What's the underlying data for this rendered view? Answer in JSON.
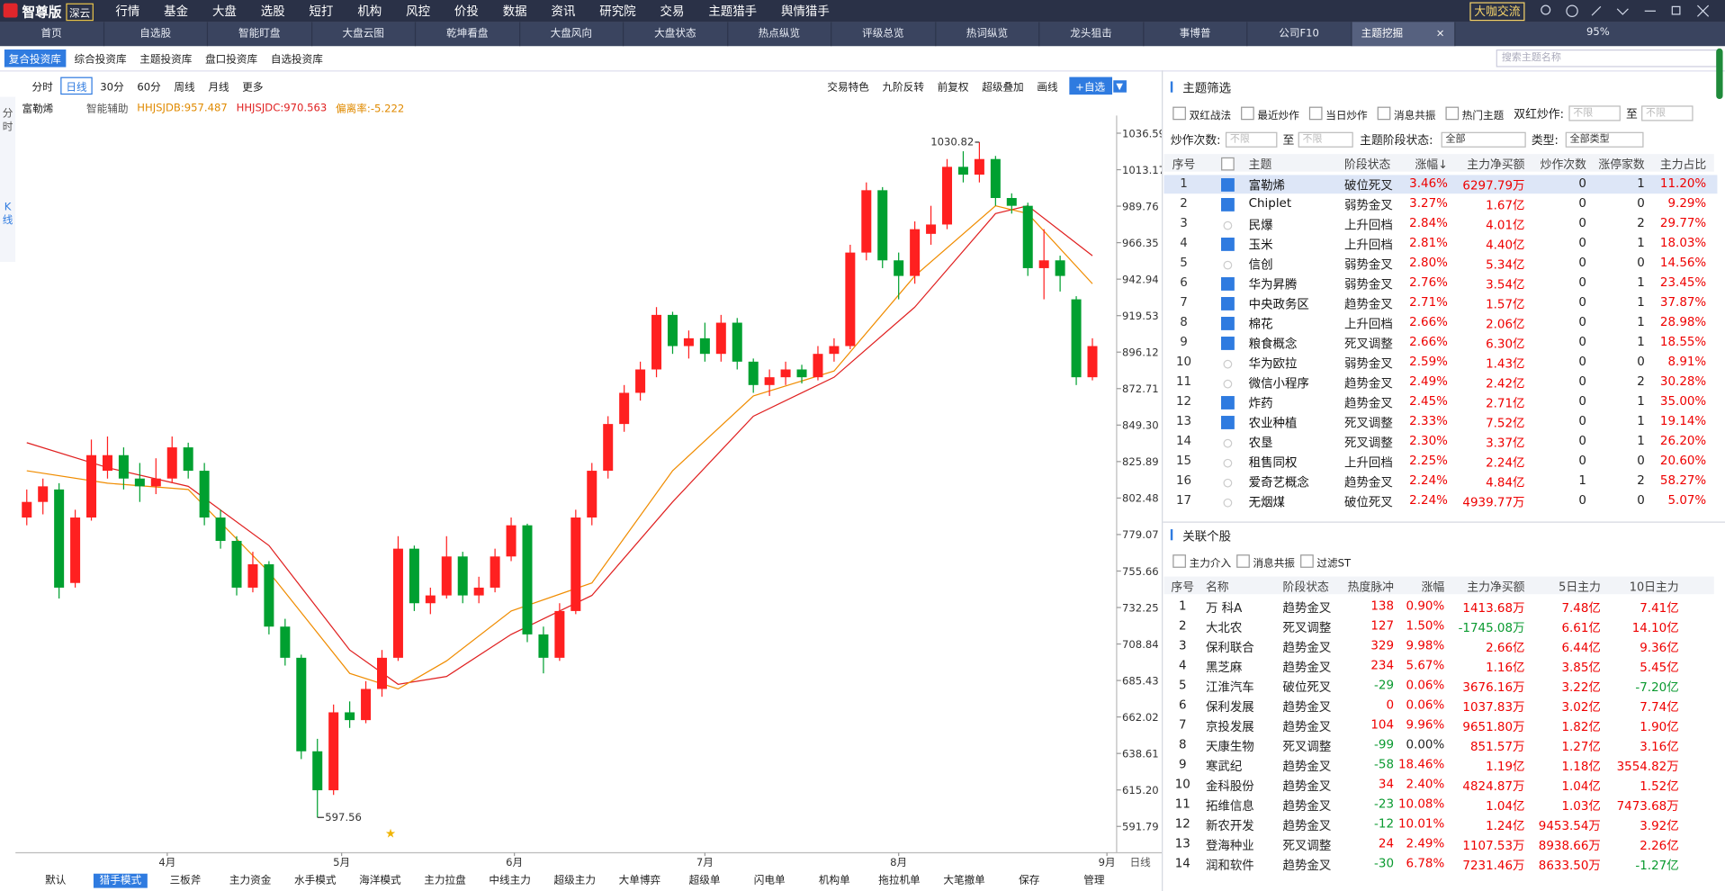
{
  "top_bar": {
    "product": "智尊版",
    "badge": "深云",
    "menu": [
      "行情",
      "基金",
      "大盘",
      "选股",
      "短打",
      "机构",
      "风控",
      "价投",
      "数据",
      "资讯",
      "研究院",
      "交易",
      "主题猎手",
      "舆情猎手"
    ],
    "button": "大咖交流"
  },
  "tabs": {
    "items": [
      "首页",
      "自选股",
      "智能盯盘",
      "大盘云图",
      "乾坤看盘",
      "大盘风向",
      "大盘状态",
      "热点纵览",
      "评级总览",
      "热词纵览",
      "龙头狙击",
      "事博普",
      "公司F10",
      "主题挖掘"
    ],
    "active": 13,
    "zoom": "95%"
  },
  "library_tabs": {
    "items": [
      "复合投资库",
      "综合投资库",
      "主题投资库",
      "盘口投资库",
      "自选投资库"
    ],
    "active": 0,
    "search_placeholder": "搜索主题名称"
  },
  "side_tabs": [
    "分时",
    "K线"
  ],
  "chart_toolbar": {
    "periods": [
      "分时",
      "日线",
      "30分",
      "60分",
      "周线",
      "月线",
      "更多"
    ],
    "active": 1,
    "tools": [
      "交易特色",
      "九阶反转",
      "前复权",
      "超级叠加",
      "画线"
    ],
    "add_button": "+自选"
  },
  "chart_data": {
    "type": "candlestick",
    "stock": "富勒烯",
    "assist": "智能辅助",
    "indicators": [
      {
        "text": "HHJSJDB:957.487",
        "color": "#e08a00"
      },
      {
        "text": "HHJSJDC:970.563",
        "color": "#e02020"
      },
      {
        "text": "偏离率:-5.222",
        "color": "#e08a00"
      }
    ],
    "period_label": "日线",
    "up_color": "#ff2020",
    "down_color": "#00a030",
    "ohlc": [
      [
        790,
        808,
        785,
        800
      ],
      [
        800,
        815,
        792,
        810
      ],
      [
        808,
        812,
        738,
        745
      ],
      [
        748,
        795,
        745,
        790
      ],
      [
        790,
        840,
        788,
        830
      ],
      [
        820,
        842,
        815,
        830
      ],
      [
        830,
        835,
        808,
        815
      ],
      [
        815,
        825,
        800,
        810
      ],
      [
        810,
        828,
        805,
        815
      ],
      [
        815,
        842,
        812,
        835
      ],
      [
        835,
        838,
        815,
        820
      ],
      [
        820,
        825,
        785,
        790
      ],
      [
        790,
        795,
        770,
        775
      ],
      [
        775,
        778,
        740,
        745
      ],
      [
        745,
        768,
        742,
        760
      ],
      [
        760,
        762,
        715,
        720
      ],
      [
        720,
        725,
        695,
        700
      ],
      [
        700,
        702,
        635,
        640
      ],
      [
        640,
        648,
        597.56,
        615
      ],
      [
        615,
        670,
        612,
        665
      ],
      [
        665,
        672,
        655,
        660
      ],
      [
        660,
        685,
        658,
        680
      ],
      [
        680,
        705,
        675,
        700
      ],
      [
        700,
        778,
        698,
        770
      ],
      [
        770,
        772,
        730,
        735
      ],
      [
        735,
        745,
        728,
        740
      ],
      [
        740,
        778,
        738,
        765
      ],
      [
        765,
        768,
        735,
        740
      ],
      [
        740,
        752,
        735,
        745
      ],
      [
        745,
        770,
        742,
        765
      ],
      [
        765,
        790,
        762,
        785
      ],
      [
        785,
        786,
        710,
        715
      ],
      [
        715,
        720,
        690,
        700
      ],
      [
        700,
        735,
        698,
        730
      ],
      [
        730,
        795,
        728,
        790
      ],
      [
        790,
        825,
        785,
        820
      ],
      [
        820,
        855,
        815,
        850
      ],
      [
        850,
        875,
        845,
        870
      ],
      [
        870,
        890,
        865,
        885
      ],
      [
        885,
        925,
        880,
        920
      ],
      [
        920,
        922,
        895,
        900
      ],
      [
        900,
        910,
        892,
        905
      ],
      [
        905,
        915,
        890,
        895
      ],
      [
        895,
        920,
        890,
        915
      ],
      [
        915,
        918,
        885,
        890
      ],
      [
        890,
        892,
        870,
        875
      ],
      [
        875,
        885,
        868,
        880
      ],
      [
        880,
        890,
        875,
        885
      ],
      [
        885,
        888,
        876,
        880
      ],
      [
        880,
        900,
        878,
        895
      ],
      [
        895,
        905,
        890,
        900
      ],
      [
        900,
        965,
        898,
        960
      ],
      [
        960,
        1005,
        955,
        1000
      ],
      [
        1000,
        1002,
        950,
        955
      ],
      [
        955,
        960,
        930,
        945
      ],
      [
        945,
        980,
        940,
        975
      ],
      [
        972,
        990,
        965,
        978
      ],
      [
        978,
        1020,
        975,
        1015
      ],
      [
        1015,
        1025,
        1005,
        1010
      ],
      [
        1010,
        1030.82,
        1005,
        1020
      ],
      [
        1020,
        1022,
        990,
        995
      ],
      [
        995,
        998,
        985,
        990
      ],
      [
        990,
        992,
        945,
        950
      ],
      [
        950,
        975,
        930,
        955
      ],
      [
        955,
        958,
        935,
        945
      ],
      [
        930,
        932,
        875,
        880
      ],
      [
        880,
        905,
        878,
        900
      ]
    ],
    "series": [
      {
        "color": "#e02020",
        "x": [
          0,
          5,
          10,
          15,
          20,
          23,
          26,
          30,
          35,
          40,
          45,
          50,
          55,
          60,
          62,
          66
        ],
        "values": [
          838,
          822,
          810,
          772,
          705,
          683,
          688,
          715,
          740,
          800,
          855,
          880,
          925,
          985,
          990,
          958
        ]
      },
      {
        "color": "#f08c00",
        "x": [
          0,
          5,
          10,
          15,
          20,
          23,
          26,
          30,
          35,
          40,
          45,
          50,
          55,
          60,
          62,
          66
        ],
        "values": [
          820,
          812,
          808,
          755,
          690,
          680,
          698,
          730,
          748,
          820,
          868,
          884,
          945,
          990,
          985,
          940
        ]
      }
    ],
    "xlim": [
      -0.5,
      67.5
    ],
    "ylim": [
      574.9,
      1045.8
    ],
    "xticks": [
      {
        "value": 8.7,
        "label": "4月"
      },
      {
        "value": 19.5,
        "label": "5月"
      },
      {
        "value": 30.2,
        "label": "6月"
      },
      {
        "value": 42,
        "label": "7月"
      },
      {
        "value": 54,
        "label": "8月"
      },
      {
        "value": 66.9,
        "label": "9月"
      }
    ],
    "yticks": [
      1036.59,
      1013.17,
      989.76,
      966.35,
      942.94,
      919.53,
      896.12,
      872.71,
      {
        "value": 849.3,
        "label": "849.30"
      },
      825.89,
      802.48,
      779.07,
      755.66,
      732.25,
      708.84,
      685.43,
      662.02,
      638.61,
      {
        "value": 615.2,
        "label": "615.20"
      },
      591.79
    ]
  },
  "bottom_tabs": {
    "items": [
      "默认",
      "猎手模式",
      "三板斧",
      "主力资金",
      "水手模式",
      "海洋模式",
      "主力拉盘",
      "中线主力",
      "超级主力",
      "大单博弈",
      "超级单",
      "闪电单",
      "机构单",
      "拖拉机单",
      "大笔撤单",
      "保存",
      "管理"
    ],
    "active": 1
  },
  "theme_panel": {
    "title": "主题筛选",
    "filters": [
      "双红战法",
      "最近炒作",
      "当日炒作",
      "消息共振",
      "热门主题"
    ],
    "double_red": "双红炒作:",
    "any": "不限",
    "to": "至",
    "count_label": "炒作次数:",
    "stage_label": "主题阶段状态:",
    "stage_value": "全部",
    "type_label": "类型:",
    "type_value": "全部类型",
    "columns": [
      "序号",
      "主题",
      "阶段状态",
      "涨幅↓",
      "主力净买额",
      "炒作次数",
      "涨停家数",
      "主力占比"
    ],
    "checked": [
      true,
      true,
      false,
      true,
      false,
      true,
      true,
      true,
      true,
      false,
      false,
      true,
      true,
      false,
      false,
      false,
      false
    ],
    "rows": [
      [
        "1",
        "富勒烯",
        "破位死叉",
        "3.46%",
        "6297.79万",
        "0",
        "1",
        "11.20%"
      ],
      [
        "2",
        "Chiplet",
        "弱势金叉",
        "3.27%",
        "1.67亿",
        "0",
        "0",
        "9.29%"
      ],
      [
        "3",
        "民爆",
        "上升回档",
        "2.84%",
        "4.01亿",
        "0",
        "2",
        "29.77%"
      ],
      [
        "4",
        "玉米",
        "上升回档",
        "2.81%",
        "4.40亿",
        "0",
        "1",
        "18.03%"
      ],
      [
        "5",
        "信创",
        "弱势金叉",
        "2.80%",
        "5.34亿",
        "0",
        "0",
        "14.56%"
      ],
      [
        "6",
        "华为昇腾",
        "弱势金叉",
        "2.76%",
        "3.54亿",
        "0",
        "1",
        "23.45%"
      ],
      [
        "7",
        "中央政务区",
        "趋势金叉",
        "2.71%",
        "1.57亿",
        "0",
        "1",
        "37.87%"
      ],
      [
        "8",
        "棉花",
        "上升回档",
        "2.66%",
        "2.06亿",
        "0",
        "1",
        "28.98%"
      ],
      [
        "9",
        "粮食概念",
        "死叉调整",
        "2.66%",
        "6.30亿",
        "0",
        "1",
        "18.55%"
      ],
      [
        "10",
        "华为欧拉",
        "弱势金叉",
        "2.59%",
        "1.43亿",
        "0",
        "0",
        "8.91%"
      ],
      [
        "11",
        "微信小程序",
        "趋势金叉",
        "2.49%",
        "2.42亿",
        "0",
        "2",
        "30.28%"
      ],
      [
        "12",
        "炸药",
        "趋势金叉",
        "2.45%",
        "2.71亿",
        "0",
        "1",
        "35.00%"
      ],
      [
        "13",
        "农业种植",
        "死叉调整",
        "2.33%",
        "7.52亿",
        "0",
        "1",
        "19.14%"
      ],
      [
        "14",
        "农垦",
        "死叉调整",
        "2.30%",
        "3.37亿",
        "0",
        "1",
        "26.20%"
      ],
      [
        "15",
        "租售同权",
        "上升回档",
        "2.25%",
        "2.24亿",
        "0",
        "0",
        "20.60%"
      ],
      [
        "16",
        "爱奇艺概念",
        "趋势金叉",
        "2.24%",
        "4.84亿",
        "1",
        "2",
        "58.27%"
      ],
      [
        "17",
        "无烟煤",
        "破位死叉",
        "2.24%",
        "4939.77万",
        "0",
        "0",
        "5.07%"
      ]
    ]
  },
  "stock_panel": {
    "title": "关联个股",
    "filters": [
      "主力介入",
      "消息共振",
      "过滤ST"
    ],
    "columns": [
      "序号",
      "名称",
      "阶段状态",
      "热度脉冲",
      "涨幅",
      "主力净买额",
      "5日主力",
      "10日主力"
    ],
    "rows": [
      [
        "1",
        "万 科A",
        "趋势金叉",
        "138",
        "0.90%",
        "1413.68万",
        "7.48亿",
        "7.41亿"
      ],
      [
        "2",
        "大北农",
        "死叉调整",
        "127",
        "1.50%",
        "-1745.08万",
        "6.61亿",
        "14.10亿"
      ],
      [
        "3",
        "保利联合",
        "趋势金叉",
        "329",
        "9.98%",
        "2.66亿",
        "6.44亿",
        "9.36亿"
      ],
      [
        "4",
        "黑芝麻",
        "趋势金叉",
        "234",
        "5.67%",
        "1.16亿",
        "3.85亿",
        "5.45亿"
      ],
      [
        "5",
        "江淮汽车",
        "破位死叉",
        "-29",
        "0.06%",
        "3676.16万",
        "3.22亿",
        "-7.20亿"
      ],
      [
        "6",
        "保利发展",
        "趋势金叉",
        "0",
        "0.06%",
        "1037.83万",
        "3.02亿",
        "7.74亿"
      ],
      [
        "7",
        "京投发展",
        "趋势金叉",
        "104",
        "9.96%",
        "9651.80万",
        "1.82亿",
        "1.90亿"
      ],
      [
        "8",
        "天康生物",
        "死叉调整",
        "-99",
        "0.00%",
        "851.57万",
        "1.27亿",
        "3.16亿"
      ],
      [
        "9",
        "寒武纪",
        "趋势金叉",
        "-58",
        "18.46%",
        "1.19亿",
        "1.18亿",
        "3554.82万"
      ],
      [
        "10",
        "金科股份",
        "趋势金叉",
        "34",
        "2.40%",
        "4824.87万",
        "1.04亿",
        "1.52亿"
      ],
      [
        "11",
        "拓维信息",
        "趋势金叉",
        "-23",
        "10.08%",
        "1.04亿",
        "1.03亿",
        "7473.68万"
      ],
      [
        "12",
        "新农开发",
        "趋势金叉",
        "-12",
        "10.01%",
        "1.24亿",
        "9453.54万",
        "3.92亿"
      ],
      [
        "13",
        "登海种业",
        "死叉调整",
        "24",
        "2.49%",
        "1107.53万",
        "8938.66万",
        "2.26亿"
      ],
      [
        "14",
        "润和软件",
        "趋势金叉",
        "-30",
        "6.78%",
        "7231.46万",
        "8633.50万",
        "-1.27亿"
      ]
    ]
  }
}
